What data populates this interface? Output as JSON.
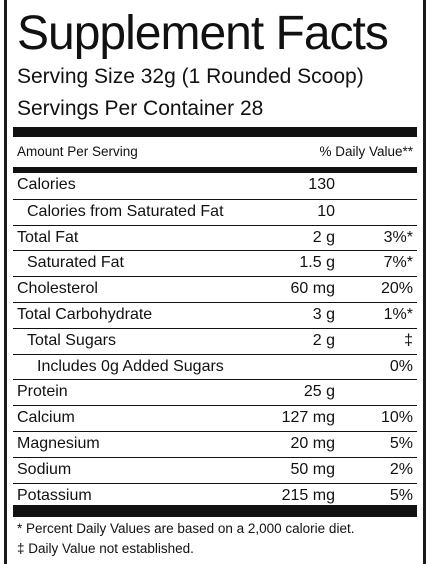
{
  "label": {
    "title": "Supplement Facts",
    "serving_size": "Serving Size 32g (1 Rounded Scoop)",
    "servings_per_container": "Servings Per Container  28",
    "header": {
      "amount_per_serving": "Amount Per Serving",
      "daily_value": "% Daily Value**"
    },
    "rows": [
      {
        "name": "Calories",
        "amount": "130",
        "dv": ""
      },
      {
        "name": "Calories from Saturated Fat",
        "amount": "10",
        "dv": ""
      },
      {
        "name": "Total Fat",
        "amount": "2 g",
        "dv": "3%*"
      },
      {
        "name": "Saturated Fat",
        "amount": "1.5 g",
        "dv": "7%*"
      },
      {
        "name": "Cholesterol",
        "amount": "60 mg",
        "dv": "20%"
      },
      {
        "name": "Total Carbohydrate",
        "amount": "3 g",
        "dv": "1%*"
      },
      {
        "name": "Total Sugars",
        "amount": "2 g",
        "dv": "‡"
      },
      {
        "name": "Includes 0g Added Sugars",
        "amount": "",
        "dv": "0%"
      },
      {
        "name": "Protein",
        "amount": "25 g",
        "dv": ""
      },
      {
        "name": "Calcium",
        "amount": "127 mg",
        "dv": "10%"
      },
      {
        "name": "Magnesium",
        "amount": "20 mg",
        "dv": "5%"
      },
      {
        "name": "Sodium",
        "amount": "50 mg",
        "dv": "2%"
      },
      {
        "name": "Potassium",
        "amount": "215 mg",
        "dv": "5%"
      }
    ],
    "footnotes": [
      "* Percent Daily Values are based on a 2,000 calorie diet.",
      "‡ Daily Value not established."
    ]
  }
}
